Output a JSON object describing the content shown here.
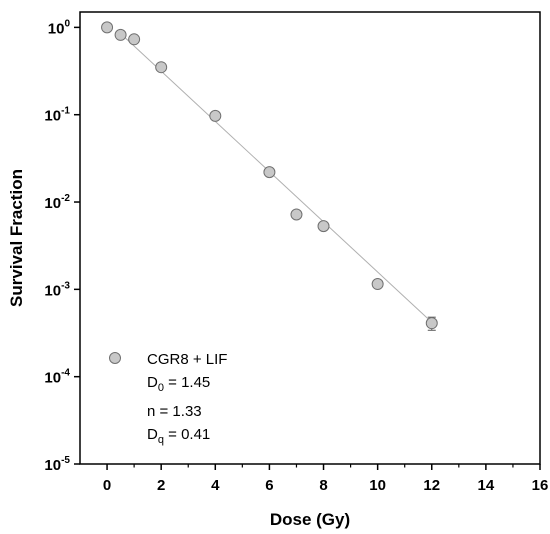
{
  "chart_data": {
    "type": "scatter",
    "xlabel": "Dose (Gy)",
    "ylabel": "Survival Fraction",
    "xlim": [
      -1,
      16
    ],
    "ylim": [
      1e-05,
      1.5
    ],
    "y_scale": "log",
    "x_ticks": [
      "0",
      "2",
      "4",
      "6",
      "8",
      "10",
      "12",
      "14",
      "16"
    ],
    "y_ticks": [
      {
        "base": "10",
        "exp": "0"
      },
      {
        "base": "10",
        "exp": "-1"
      },
      {
        "base": "10",
        "exp": "-2"
      },
      {
        "base": "10",
        "exp": "-3"
      },
      {
        "base": "10",
        "exp": "-4"
      },
      {
        "base": "10",
        "exp": "-5"
      }
    ],
    "grid": false,
    "legend_position": "bottom-left",
    "colors": {
      "marker_fill": "#c8c8c8",
      "marker_stroke": "#707070",
      "fit_line": "#b0b0b0"
    },
    "series": [
      {
        "name": "CGR8 + LIF",
        "x": [
          0,
          0.5,
          1,
          2,
          4,
          6,
          7,
          8,
          10,
          12
        ],
        "y": [
          1.0,
          0.82,
          0.73,
          0.35,
          0.097,
          0.022,
          0.0072,
          0.0053,
          0.00115,
          0.00041
        ],
        "error": [
          0,
          0,
          0,
          0,
          0,
          0,
          0,
          0,
          0,
          7e-05
        ]
      }
    ],
    "fit_line": {
      "x": [
        0.5,
        12
      ],
      "y": [
        0.85,
        0.00042
      ]
    },
    "annotations": [
      {
        "main": "D",
        "sub": "0",
        "rest": " = 1.45"
      },
      {
        "main": "n   = 1.33",
        "sub": "",
        "rest": ""
      },
      {
        "main": "D",
        "sub": "q",
        "rest": " = 0.41"
      }
    ]
  }
}
